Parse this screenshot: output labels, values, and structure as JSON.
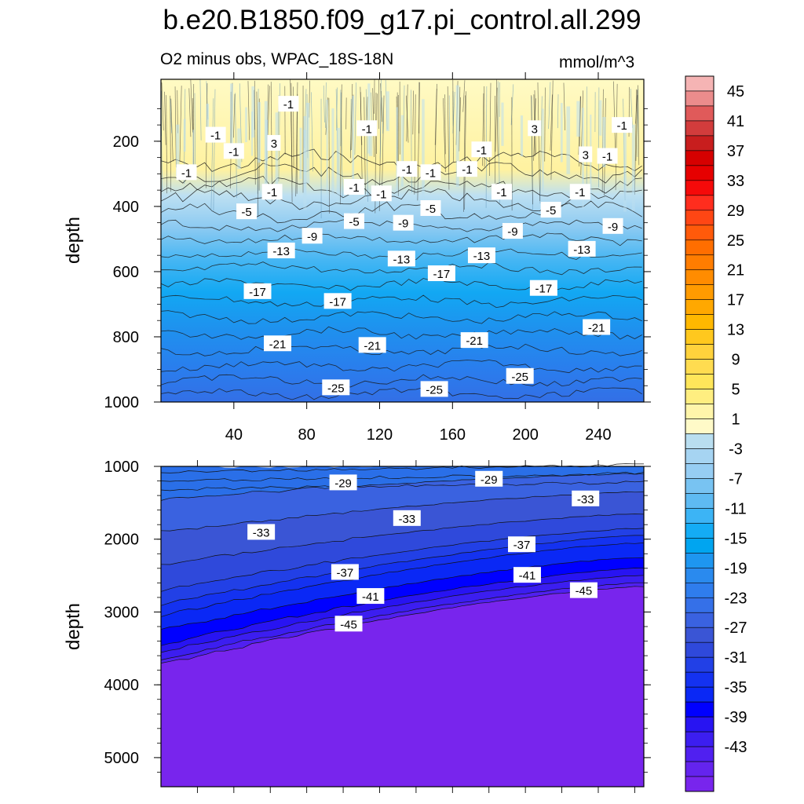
{
  "title": "b.e20.B1850.f09_g17.pi_control.all.299",
  "subtitle": "O2 minus obs, WPAC_18S-18N",
  "units": "mmol/m^3",
  "chart_data": [
    {
      "type": "contour",
      "panel": "upper",
      "ylabel": "depth",
      "xlabel": "",
      "xlim": [
        0,
        265
      ],
      "ylim": [
        1000,
        10
      ],
      "x_ticks": [
        40,
        80,
        120,
        160,
        200,
        240
      ],
      "y_ticks": [
        200,
        400,
        600,
        800,
        1000
      ],
      "contour_labels": [
        {
          "x": 70,
          "y": 85,
          "v": "-1"
        },
        {
          "x": 30,
          "y": 180,
          "v": "-1"
        },
        {
          "x": 113,
          "y": 160,
          "v": "-1"
        },
        {
          "x": 205,
          "y": 160,
          "v": "3"
        },
        {
          "x": 253,
          "y": 150,
          "v": "-1"
        },
        {
          "x": 62,
          "y": 205,
          "v": "3"
        },
        {
          "x": 40,
          "y": 230,
          "v": "-1"
        },
        {
          "x": 176,
          "y": 225,
          "v": "-1"
        },
        {
          "x": 233,
          "y": 240,
          "v": "3"
        },
        {
          "x": 245,
          "y": 245,
          "v": "-1"
        },
        {
          "x": 14,
          "y": 295,
          "v": "-1"
        },
        {
          "x": 135,
          "y": 285,
          "v": "-1"
        },
        {
          "x": 148,
          "y": 295,
          "v": "-1"
        },
        {
          "x": 168,
          "y": 285,
          "v": "-1"
        },
        {
          "x": 106,
          "y": 340,
          "v": "-1"
        },
        {
          "x": 61,
          "y": 355,
          "v": "-1"
        },
        {
          "x": 121,
          "y": 360,
          "v": "-1"
        },
        {
          "x": 187,
          "y": 355,
          "v": "-1"
        },
        {
          "x": 230,
          "y": 355,
          "v": "-1"
        },
        {
          "x": 47,
          "y": 415,
          "v": "-5"
        },
        {
          "x": 148,
          "y": 405,
          "v": "-5"
        },
        {
          "x": 214,
          "y": 410,
          "v": "-5"
        },
        {
          "x": 106,
          "y": 445,
          "v": "-5"
        },
        {
          "x": 133,
          "y": 450,
          "v": "-9"
        },
        {
          "x": 193,
          "y": 475,
          "v": "-9"
        },
        {
          "x": 248,
          "y": 460,
          "v": "-9"
        },
        {
          "x": 83,
          "y": 490,
          "v": "-9"
        },
        {
          "x": 66,
          "y": 535,
          "v": "-13"
        },
        {
          "x": 132,
          "y": 560,
          "v": "-13"
        },
        {
          "x": 176,
          "y": 550,
          "v": "-13"
        },
        {
          "x": 231,
          "y": 530,
          "v": "-13"
        },
        {
          "x": 154,
          "y": 605,
          "v": "-17"
        },
        {
          "x": 210,
          "y": 650,
          "v": "-17"
        },
        {
          "x": 53,
          "y": 660,
          "v": "-17"
        },
        {
          "x": 97,
          "y": 690,
          "v": "-17"
        },
        {
          "x": 239,
          "y": 770,
          "v": "-21"
        },
        {
          "x": 172,
          "y": 810,
          "v": "-21"
        },
        {
          "x": 64,
          "y": 820,
          "v": "-21"
        },
        {
          "x": 116,
          "y": 825,
          "v": "-21"
        },
        {
          "x": 197,
          "y": 920,
          "v": "-25"
        },
        {
          "x": 96,
          "y": 955,
          "v": "-25"
        },
        {
          "x": 150,
          "y": 960,
          "v": "-25"
        }
      ]
    },
    {
      "type": "contour",
      "panel": "lower",
      "ylabel": "depth",
      "xlabel": "",
      "xlim": [
        0,
        265
      ],
      "ylim": [
        5400,
        1000
      ],
      "y_ticks": [
        1000,
        2000,
        3000,
        4000,
        5000
      ],
      "contour_labels": [
        {
          "x": 100,
          "y": 1220,
          "v": "-29"
        },
        {
          "x": 180,
          "y": 1170,
          "v": "-29"
        },
        {
          "x": 233,
          "y": 1440,
          "v": "-33"
        },
        {
          "x": 135,
          "y": 1710,
          "v": "-33"
        },
        {
          "x": 55,
          "y": 1900,
          "v": "-33"
        },
        {
          "x": 198,
          "y": 2070,
          "v": "-37"
        },
        {
          "x": 101,
          "y": 2450,
          "v": "-37"
        },
        {
          "x": 201,
          "y": 2490,
          "v": "-41"
        },
        {
          "x": 232,
          "y": 2700,
          "v": "-45"
        },
        {
          "x": 115,
          "y": 2780,
          "v": "-41"
        },
        {
          "x": 103,
          "y": 3160,
          "v": "-45"
        }
      ]
    }
  ],
  "colorbar": {
    "labels": [
      "45",
      "41",
      "37",
      "33",
      "29",
      "25",
      "21",
      "17",
      "13",
      "9",
      "5",
      "1",
      "-3",
      "-7",
      "-11",
      "-15",
      "-19",
      "-23",
      "-27",
      "-31",
      "-35",
      "-39",
      "-43"
    ],
    "colors": [
      "#f5b4b4",
      "#eb8c8c",
      "#e05a5a",
      "#d23c3c",
      "#c81e1e",
      "#d60000",
      "#e60000",
      "#f50a0a",
      "#ff2d1e",
      "#ff4614",
      "#ff5a0a",
      "#ff6e00",
      "#ff7d00",
      "#ff8c00",
      "#ff9b00",
      "#ffa800",
      "#ffb800",
      "#ffc81e",
      "#ffd23c",
      "#ffdc50",
      "#ffe65a",
      "#ffee80",
      "#fff5aa",
      "#fffac8",
      "#b9def0",
      "#a6d4f2",
      "#96cdf3",
      "#78c3f2",
      "#5ebaf2",
      "#3cb4f5",
      "#14acf5",
      "#00a5f0",
      "#1e96f0",
      "#2a8aee",
      "#2f7ded",
      "#3570e8",
      "#3a62e0",
      "#3a55d5",
      "#2f49db",
      "#2240e6",
      "#1432f0",
      "#0a28f5",
      "#0000ff",
      "#2814f2",
      "#3c1ef0",
      "#5020f0",
      "#6424ee",
      "#7825ed"
    ]
  }
}
